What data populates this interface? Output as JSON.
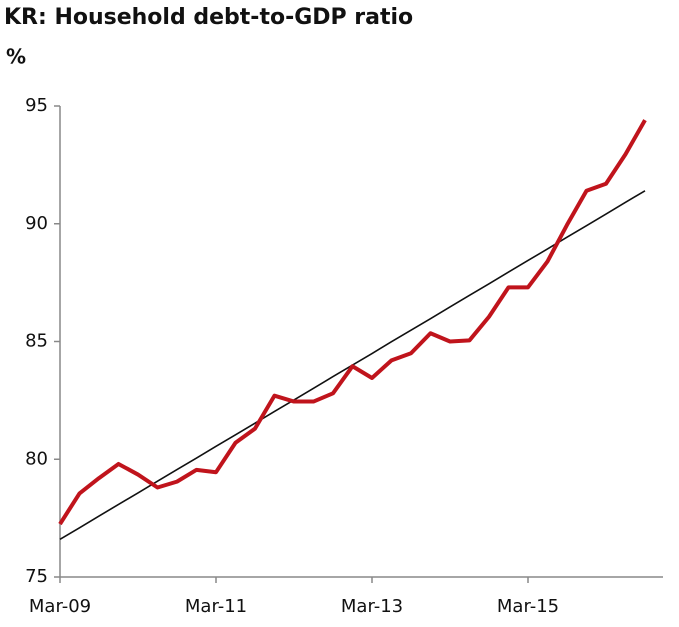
{
  "chart_data": {
    "type": "line",
    "title": "KR: Household debt-to-GDP ratio",
    "y_label": "%",
    "categories": [
      "Mar-09",
      null,
      null,
      null,
      null,
      null,
      null,
      null,
      "Mar-11",
      null,
      null,
      null,
      null,
      null,
      null,
      null,
      "Mar-13",
      null,
      null,
      null,
      null,
      null,
      null,
      null,
      "Mar-15",
      null,
      null,
      null,
      null,
      null,
      null
    ],
    "series": [
      {
        "color": "#c0141c",
        "values": [
          77.25,
          78.55,
          79.2,
          79.8,
          79.35,
          78.8,
          79.05,
          79.55,
          79.45,
          80.7,
          81.3,
          82.7,
          82.45,
          82.45,
          82.8,
          83.95,
          83.45,
          84.2,
          84.5,
          85.35,
          85.0,
          85.05,
          86.05,
          87.3,
          87.3,
          88.4,
          89.95,
          91.4,
          91.7,
          92.95,
          94.4
        ]
      },
      {
        "color": "#111111",
        "values": [
          76.6,
          77.09,
          77.59,
          78.08,
          78.57,
          79.07,
          79.56,
          80.05,
          80.55,
          81.04,
          81.53,
          82.03,
          82.52,
          83.01,
          83.51,
          84.0,
          84.49,
          84.99,
          85.48,
          85.97,
          86.47,
          86.96,
          87.45,
          87.95,
          88.44,
          88.93,
          89.43,
          89.92,
          90.41,
          90.91,
          91.4
        ]
      }
    ],
    "ylim": [
      75,
      95
    ],
    "yticks": [
      75,
      80,
      85,
      90,
      95
    ],
    "grid": false
  }
}
